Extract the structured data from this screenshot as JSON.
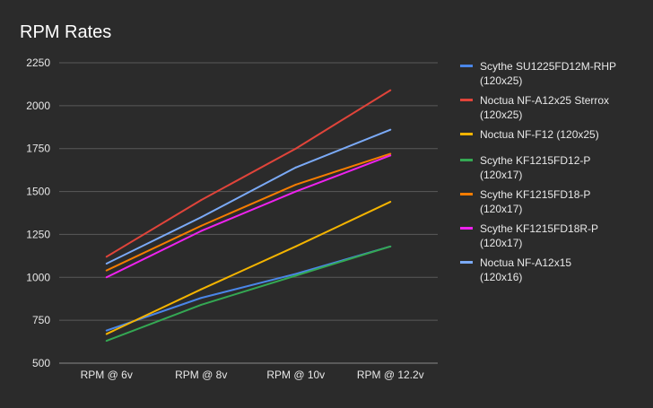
{
  "chart_data": {
    "type": "line",
    "title": "RPM Rates",
    "xlabel": "",
    "ylabel": "",
    "categories": [
      "RPM @ 6v",
      "RPM @ 8v",
      "RPM @ 10v",
      "RPM @ 12.2v"
    ],
    "ylim": [
      500,
      2250
    ],
    "yticks": [
      500,
      750,
      1000,
      1250,
      1500,
      1750,
      2000,
      2250
    ],
    "grid": true,
    "legend_position": "right",
    "series": [
      {
        "name": "Scythe SU1225FD12M-RHP (120x25)",
        "color": "#4a86e8",
        "values": [
          690,
          880,
          1020,
          1180
        ]
      },
      {
        "name": "Noctua NF-A12x25 Sterrox (120x25)",
        "color": "#e0443a",
        "values": [
          1120,
          1450,
          1750,
          2090
        ]
      },
      {
        "name": "Noctua NF-F12 (120x25)",
        "color": "#f4b400",
        "values": [
          670,
          930,
          1180,
          1440
        ]
      },
      {
        "name": "Scythe KF1215FD12-P (120x17)",
        "color": "#34a853",
        "values": [
          630,
          840,
          1010,
          1180
        ]
      },
      {
        "name": "Scythe KF1215FD18-P (120x17)",
        "color": "#f57c00",
        "values": [
          1040,
          1300,
          1540,
          1720
        ]
      },
      {
        "name": "Scythe KF1215FD18R-P (120x17)",
        "color": "#ee22ee",
        "values": [
          1000,
          1270,
          1500,
          1710
        ]
      },
      {
        "name": "Noctua NF-A12x15 (120x16)",
        "color": "#7baaf7",
        "values": [
          1080,
          1350,
          1640,
          1860
        ]
      }
    ]
  }
}
